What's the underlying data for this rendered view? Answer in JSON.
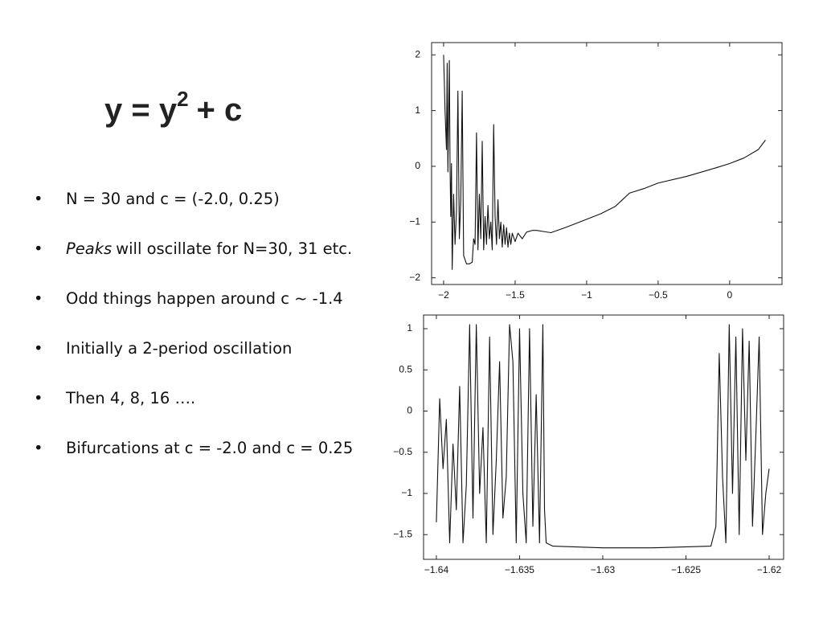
{
  "slide": {
    "title": {
      "base": "y = y",
      "exponent": "2",
      "rest": "+ c"
    },
    "bullets": [
      {
        "text": "N = 30 and c = (-2.0, 0.25)"
      },
      {
        "emphasis": "Peaks",
        "text": "will oscillate for N=30, 31 etc."
      },
      {
        "text": "Odd things happen around c ~ -1.4"
      },
      {
        "text": "Initially a 2-period oscillation"
      },
      {
        "text": "Then 4, 8, 16 …."
      },
      {
        "text": "Bifurcations at c = -2.0 and c = 0.25"
      }
    ]
  },
  "chart_data": [
    {
      "type": "line",
      "color": "#111111",
      "xlim": [
        -2.084,
        0.366
      ],
      "ylim": [
        -2.12,
        2.22
      ],
      "xticks": [
        {
          "value": -2,
          "label": "−2"
        },
        {
          "value": -1.5,
          "label": "−1.5"
        },
        {
          "value": -1,
          "label": "−1"
        },
        {
          "value": -0.5,
          "label": "−0.5"
        },
        0
      ],
      "yticks": [
        {
          "value": -2,
          "label": "−2"
        },
        {
          "value": -1,
          "label": "−1"
        },
        0,
        1,
        2
      ],
      "x": [
        -2.0,
        -1.99,
        -1.98,
        -1.975,
        -1.97,
        -1.96,
        -1.955,
        -1.95,
        -1.945,
        -1.94,
        -1.93,
        -1.92,
        -1.91,
        -1.9,
        -1.89,
        -1.88,
        -1.87,
        -1.86,
        -1.84,
        -1.82,
        -1.8,
        -1.79,
        -1.78,
        -1.77,
        -1.76,
        -1.75,
        -1.74,
        -1.73,
        -1.72,
        -1.71,
        -1.7,
        -1.69,
        -1.68,
        -1.67,
        -1.66,
        -1.65,
        -1.64,
        -1.63,
        -1.62,
        -1.61,
        -1.6,
        -1.59,
        -1.58,
        -1.57,
        -1.56,
        -1.55,
        -1.54,
        -1.53,
        -1.52,
        -1.5,
        -1.48,
        -1.45,
        -1.42,
        -1.38,
        -1.35,
        -1.3,
        -1.25,
        -1.15,
        -1.0,
        -0.9,
        -0.8,
        -0.75,
        -0.7,
        -0.6,
        -0.5,
        -0.3,
        -0.1,
        0,
        0.1,
        0.2,
        0.25
      ],
      "values": [
        2.0,
        1.0,
        0.3,
        1.85,
        -0.1,
        1.9,
        0.0,
        -0.9,
        0.05,
        -1.85,
        -0.5,
        -1.4,
        -0.8,
        1.35,
        -1.3,
        -0.6,
        1.35,
        -1.6,
        -1.75,
        -1.75,
        -1.72,
        -1.3,
        -1.4,
        0.6,
        -1.5,
        -0.5,
        -1.3,
        0.45,
        -1.5,
        -0.9,
        -1.4,
        -0.7,
        -1.3,
        -1.0,
        -1.5,
        0.75,
        -0.9,
        -1.4,
        -0.6,
        -1.3,
        -1.0,
        -1.45,
        -1.05,
        -1.4,
        -1.1,
        -1.45,
        -1.2,
        -1.4,
        -1.2,
        -1.35,
        -1.2,
        -1.3,
        -1.18,
        -1.15,
        -1.15,
        -1.17,
        -1.19,
        -1.1,
        -0.95,
        -0.85,
        -0.72,
        -0.6,
        -0.48,
        -0.4,
        -0.3,
        -0.18,
        -0.03,
        0.05,
        0.15,
        0.3,
        0.47
      ]
    },
    {
      "type": "line",
      "color": "#111111",
      "xlim": [
        -1.64077,
        -1.61913
      ],
      "ylim": [
        -1.8,
        1.166
      ],
      "xticks": [
        {
          "value": -1.64,
          "label": "−1.64"
        },
        {
          "value": -1.635,
          "label": "−1.635"
        },
        {
          "value": -1.63,
          "label": "−1.63"
        },
        {
          "value": -1.625,
          "label": "−1.625"
        },
        {
          "value": -1.62,
          "label": "−1.62"
        }
      ],
      "yticks": [
        {
          "value": -1.5,
          "label": "−1.5"
        },
        {
          "value": -1,
          "label": "−1"
        },
        {
          "value": -0.5,
          "label": "−0.5"
        },
        0,
        0.5,
        1
      ],
      "x": [
        -1.64,
        -1.6398,
        -1.6396,
        -1.6394,
        -1.6392,
        -1.639,
        -1.6388,
        -1.6386,
        -1.6384,
        -1.6382,
        -1.638,
        -1.6378,
        -1.6376,
        -1.6374,
        -1.6372,
        -1.637,
        -1.6368,
        -1.6366,
        -1.6364,
        -1.6362,
        -1.636,
        -1.6358,
        -1.6356,
        -1.6354,
        -1.6352,
        -1.635,
        -1.6348,
        -1.6346,
        -1.6344,
        -1.6342,
        -1.634,
        -1.6338,
        -1.6336,
        -1.6335,
        -1.6334,
        -1.633,
        -1.63,
        -1.627,
        -1.6235,
        -1.6232,
        -1.623,
        -1.6228,
        -1.6226,
        -1.6224,
        -1.6222,
        -1.622,
        -1.6218,
        -1.6216,
        -1.6214,
        -1.6212,
        -1.621,
        -1.6208,
        -1.6206,
        -1.6204,
        -1.6202,
        -1.62
      ],
      "values": [
        -1.35,
        0.15,
        -0.7,
        -0.1,
        -1.6,
        -0.4,
        -1.2,
        0.3,
        -1.6,
        -0.9,
        1.05,
        -1.3,
        1.05,
        -1.0,
        -0.2,
        -1.6,
        0.9,
        -1.5,
        -0.6,
        0.6,
        -1.3,
        -0.8,
        1.05,
        0.6,
        -1.6,
        1.0,
        -1.0,
        -1.6,
        1.0,
        -1.4,
        0.2,
        -1.6,
        1.05,
        -1.2,
        -1.6,
        -1.64,
        -1.66,
        -1.66,
        -1.64,
        -1.4,
        0.7,
        -0.8,
        -1.6,
        1.05,
        -1.0,
        0.9,
        -1.5,
        1.0,
        -0.6,
        0.85,
        -1.4,
        -0.3,
        0.9,
        -1.5,
        -1.0,
        -0.7
      ]
    }
  ]
}
